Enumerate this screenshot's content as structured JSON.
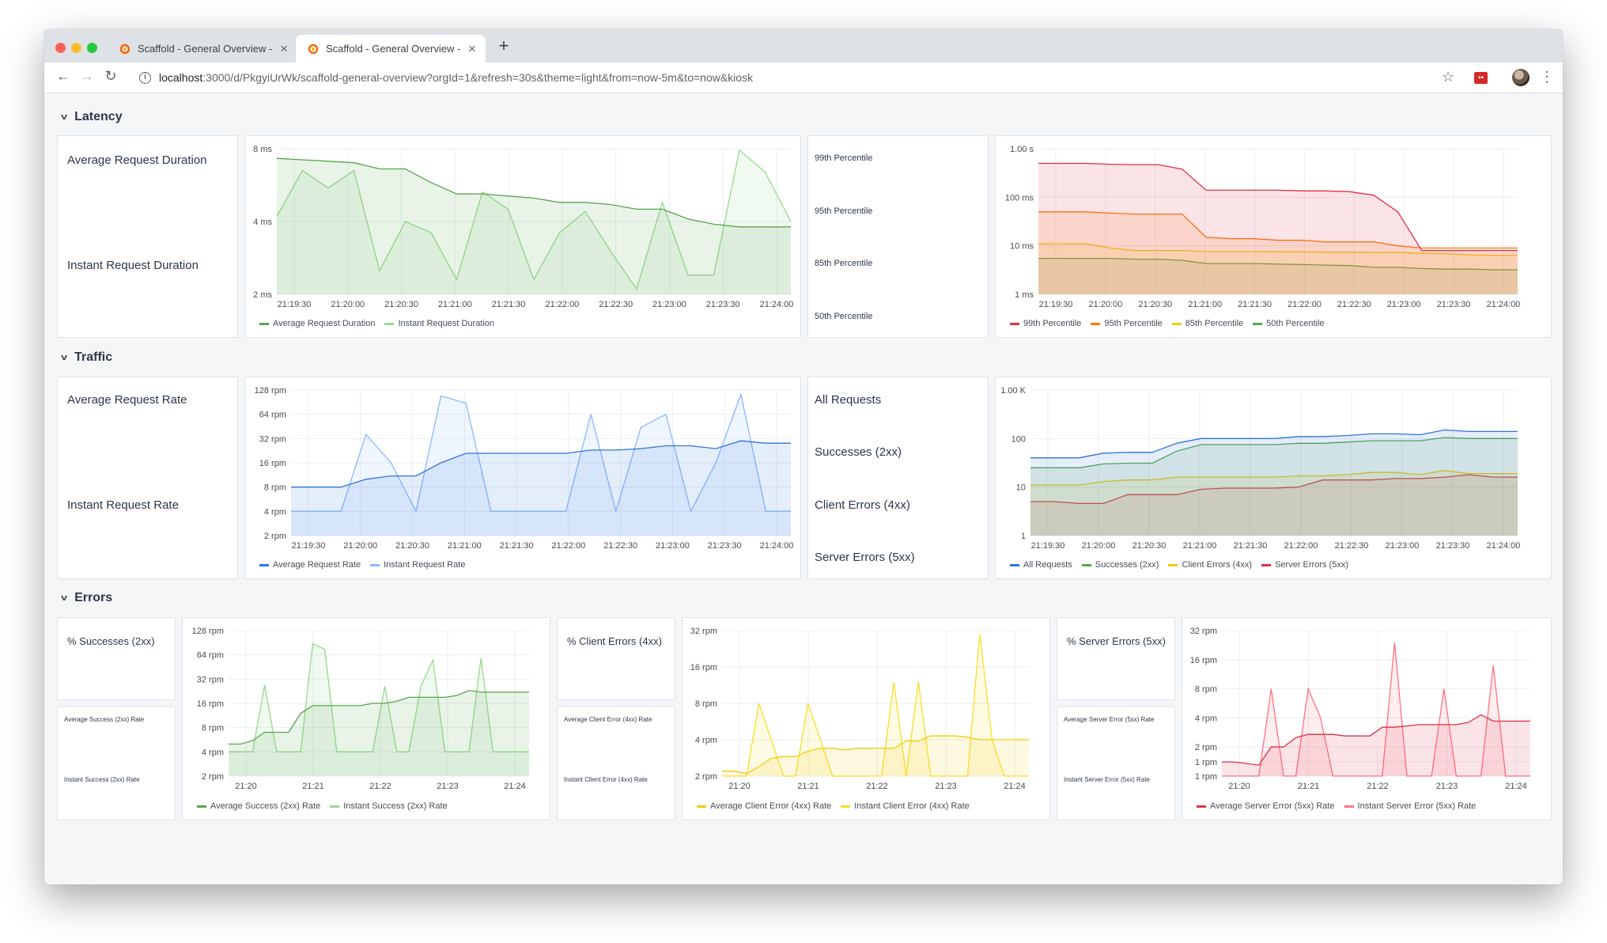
{
  "browser": {
    "tabs": [
      {
        "title": "Scaffold - General Overview - Gr"
      },
      {
        "title": "Scaffold - General Overview - Gr"
      }
    ],
    "url": {
      "host": "localhost",
      "path": ":3000/d/PkgyiUrWk/scaffold-general-overview?orgId=1&refresh=30s&theme=light&from=now-5m&to=now&kiosk"
    },
    "colors": {
      "tab_bg": "#dee1e6",
      "close": "#ff5f57",
      "minimize": "#febc2e",
      "zoom": "#28c840"
    }
  },
  "rows": {
    "latency": "Latency",
    "traffic": "Traffic",
    "errors": "Errors"
  },
  "stats": {
    "latency_left": [
      "Average Request Duration",
      "Instant Request Duration"
    ],
    "latency_right": [
      "99th Percentile",
      "95th Percentile",
      "85th Percentile",
      "50th Percentile"
    ],
    "traffic_left": [
      "Average Request Rate",
      "Instant Request Rate"
    ],
    "traffic_right": [
      "All Requests",
      "Successes (2xx)",
      "Client Errors (4xx)",
      "Server Errors (5xx)"
    ],
    "err_success_title": "% Successes (2xx)",
    "err_success_sub": [
      "Average Success (2xx) Rate",
      "Instant Success (2xx) Rate"
    ],
    "err_client_title": "% Client Errors (4xx)",
    "err_client_sub": [
      "Average Client Error (4xx) Rate",
      "Instant Client Error (4xx) Rate"
    ],
    "err_server_title": "% Server Errors (5xx)",
    "err_server_sub": [
      "Average Server Error (5xx) Rate",
      "Instant Server Error (5xx) Rate"
    ]
  },
  "chart_data": [
    {
      "id": "latency_duration",
      "type": "area",
      "scale": "log",
      "yticks": [
        "2 ms",
        "4 ms",
        "8 ms"
      ],
      "ytick_values": [
        2,
        4,
        8
      ],
      "ylim": [
        2,
        8
      ],
      "xticks": [
        "21:19:30",
        "21:20:00",
        "21:20:30",
        "21:21:00",
        "21:21:30",
        "21:22:00",
        "21:22:30",
        "21:23:00",
        "21:23:30",
        "21:24:00"
      ],
      "x_range": [
        0,
        20
      ],
      "series": [
        {
          "name": "Average Request Duration",
          "color": "#56a64b",
          "values": [
            7.3,
            7.2,
            7.1,
            7.0,
            6.6,
            6.6,
            5.8,
            5.2,
            5.2,
            5.1,
            5.0,
            4.8,
            4.8,
            4.7,
            4.5,
            4.5,
            4.1,
            3.9,
            3.8,
            3.8,
            3.8
          ]
        },
        {
          "name": "Instant Request Duration",
          "color": "#96d98d",
          "values": [
            4.2,
            6.5,
            5.5,
            6.5,
            2.5,
            4.0,
            3.6,
            2.3,
            5.3,
            4.5,
            2.3,
            3.6,
            4.4,
            3.0,
            2.1,
            4.8,
            2.4,
            2.4,
            7.9,
            6.4,
            4.0
          ]
        }
      ]
    },
    {
      "id": "latency_percentiles",
      "type": "area",
      "scale": "log",
      "yticks": [
        "1 ms",
        "10 ms",
        "100 ms",
        "1.00 s"
      ],
      "ytick_values": [
        1,
        10,
        100,
        1000
      ],
      "ylim": [
        1,
        1000
      ],
      "xticks": [
        "21:19:30",
        "21:20:00",
        "21:20:30",
        "21:21:00",
        "21:21:30",
        "21:22:00",
        "21:22:30",
        "21:23:00",
        "21:23:30",
        "21:24:00"
      ],
      "x_range": [
        0,
        20
      ],
      "series": [
        {
          "name": "99th Percentile",
          "color": "#e02f44",
          "values": [
            500,
            500,
            500,
            480,
            470,
            470,
            380,
            140,
            140,
            140,
            140,
            135,
            135,
            130,
            110,
            50,
            8,
            8,
            8,
            8,
            8
          ]
        },
        {
          "name": "95th Percentile",
          "color": "#ff780a",
          "values": [
            50,
            50,
            50,
            47,
            45,
            45,
            45,
            15,
            14,
            14,
            13,
            13,
            12,
            12,
            12,
            10,
            9,
            9,
            9,
            9,
            9
          ]
        },
        {
          "name": "85th Percentile",
          "color": "#f2cc0c",
          "values": [
            11,
            11,
            11,
            9,
            8,
            8,
            8,
            7.6,
            7.6,
            7.6,
            7.5,
            7.5,
            7.4,
            7.4,
            7.3,
            7.3,
            7,
            6.8,
            6.5,
            6.4,
            6.3
          ]
        },
        {
          "name": "50th Percentile",
          "color": "#56a64b",
          "values": [
            5.5,
            5.5,
            5.5,
            5.5,
            5.3,
            5.3,
            5.0,
            4.3,
            4.3,
            4.3,
            4.2,
            4.1,
            4.0,
            3.9,
            3.6,
            3.6,
            3.4,
            3.3,
            3.3,
            3.2,
            3.2
          ]
        }
      ]
    },
    {
      "id": "traffic_rate",
      "type": "area",
      "scale": "log",
      "yticks": [
        "2 rpm",
        "4 rpm",
        "8 rpm",
        "16 rpm",
        "32 rpm",
        "64 rpm",
        "128 rpm"
      ],
      "ytick_values": [
        2,
        4,
        8,
        16,
        32,
        64,
        128
      ],
      "ylim": [
        2,
        128
      ],
      "xticks": [
        "21:19:30",
        "21:20:00",
        "21:20:30",
        "21:21:00",
        "21:21:30",
        "21:22:00",
        "21:22:30",
        "21:23:00",
        "21:23:30",
        "21:24:00"
      ],
      "x_range": [
        0,
        20
      ],
      "series": [
        {
          "name": "Average Request Rate",
          "color": "#3274d9",
          "values": [
            8,
            8,
            8,
            10,
            11,
            11,
            16,
            21,
            21,
            21,
            21,
            21,
            23,
            23,
            24,
            26,
            26,
            24,
            30,
            28,
            28
          ]
        },
        {
          "name": "Instant Request Rate",
          "color": "#8ab8ff",
          "values": [
            4,
            4,
            4,
            36,
            16,
            4,
            108,
            88,
            4,
            4,
            4,
            4,
            64,
            4,
            44,
            64,
            4,
            16,
            113,
            4,
            4
          ]
        }
      ]
    },
    {
      "id": "traffic_breakdown",
      "type": "area",
      "scale": "log",
      "yticks": [
        "1",
        "10",
        "100",
        "1.00 K"
      ],
      "ytick_values": [
        1,
        10,
        100,
        1000
      ],
      "ylim": [
        1,
        1000
      ],
      "xticks": [
        "21:19:30",
        "21:20:00",
        "21:20:30",
        "21:21:00",
        "21:21:30",
        "21:22:00",
        "21:22:30",
        "21:23:00",
        "21:23:30",
        "21:24:00"
      ],
      "x_range": [
        0,
        20
      ],
      "series": [
        {
          "name": "All Requests",
          "color": "#3274d9",
          "values": [
            40,
            40,
            40,
            50,
            52,
            52,
            80,
            100,
            100,
            100,
            100,
            110,
            110,
            115,
            125,
            125,
            120,
            150,
            140,
            140,
            140
          ]
        },
        {
          "name": "Successes (2xx)",
          "color": "#56a64b",
          "values": [
            25,
            25,
            25,
            30,
            31,
            31,
            55,
            75,
            75,
            75,
            75,
            80,
            80,
            85,
            90,
            90,
            90,
            105,
            100,
            100,
            100
          ]
        },
        {
          "name": "Client Errors (4xx)",
          "color": "#f2cc0c",
          "values": [
            11,
            11,
            11,
            13,
            14,
            14,
            16,
            16,
            16,
            16,
            16,
            17,
            17,
            18,
            20,
            20,
            18,
            22,
            19,
            19,
            19
          ]
        },
        {
          "name": "Server Errors (5xx)",
          "color": "#e02f44",
          "values": [
            5,
            5,
            4.6,
            4.6,
            7,
            7,
            7,
            9,
            9.5,
            9.5,
            9.5,
            10,
            14,
            14,
            14,
            15,
            15,
            16,
            18,
            16,
            16
          ]
        }
      ]
    },
    {
      "id": "errors_success",
      "type": "area",
      "scale": "log",
      "yticks": [
        "2 rpm",
        "4 rpm",
        "8 rpm",
        "16 rpm",
        "32 rpm",
        "64 rpm",
        "128 rpm"
      ],
      "ytick_values": [
        2,
        4,
        8,
        16,
        32,
        64,
        128
      ],
      "ylim": [
        2,
        128
      ],
      "xticks": [
        "21:20",
        "21:21",
        "21:22",
        "21:23",
        "21:24"
      ],
      "x_range": [
        0,
        25
      ],
      "series": [
        {
          "name": "Average Success (2xx) Rate",
          "color": "#56a64b",
          "values": [
            5,
            5,
            5.5,
            7,
            7,
            7,
            12,
            15,
            15,
            15,
            15,
            15,
            16,
            16,
            17,
            19,
            19,
            19,
            19,
            20,
            23,
            22,
            22,
            22,
            22,
            22
          ]
        },
        {
          "name": "Instant Success (2xx) Rate",
          "color": "#96d98d",
          "values": [
            4,
            4,
            4,
            27,
            4,
            4,
            4,
            88,
            75,
            4,
            4,
            4,
            4,
            26,
            4,
            4,
            26,
            55,
            4,
            4,
            4,
            58,
            4,
            4,
            4,
            4
          ]
        }
      ]
    },
    {
      "id": "errors_client",
      "type": "area",
      "scale": "log",
      "yticks": [
        "2 rpm",
        "4 rpm",
        "8 rpm",
        "16 rpm",
        "32 rpm"
      ],
      "ytick_values": [
        2,
        4,
        8,
        16,
        32
      ],
      "ylim": [
        2,
        32
      ],
      "xticks": [
        "21:20",
        "21:21",
        "21:22",
        "21:23",
        "21:24"
      ],
      "x_range": [
        0,
        25
      ],
      "series": [
        {
          "name": "Average Client Error (4xx) Rate",
          "color": "#f2cc0c",
          "values": [
            2.2,
            2.2,
            2.1,
            2.4,
            2.8,
            2.9,
            2.9,
            3.2,
            3.4,
            3.4,
            3.3,
            3.4,
            3.4,
            3.4,
            3.4,
            3.9,
            3.9,
            4.3,
            4.3,
            4.3,
            4.2,
            4.0,
            4.0,
            4.0,
            4.0,
            4.0
          ]
        },
        {
          "name": "Instant Client Error (4xx) Rate",
          "color": "#fade2a",
          "values": [
            2,
            2,
            2,
            8,
            4,
            2,
            2,
            8,
            4,
            2,
            2,
            2,
            2,
            2,
            12,
            2,
            12,
            2,
            2,
            2,
            2,
            30,
            4,
            2,
            2,
            2
          ]
        }
      ]
    },
    {
      "id": "errors_server",
      "type": "area",
      "scale": "log",
      "yticks": [
        "1 rpm",
        "1 rpm",
        "2 rpm",
        "4 rpm",
        "8 rpm",
        "16 rpm",
        "32 rpm"
      ],
      "ytick_values": [
        1,
        1.41,
        2,
        4,
        8,
        16,
        32
      ],
      "ylim": [
        1,
        32
      ],
      "xticks": [
        "21:20",
        "21:21",
        "21:22",
        "21:23",
        "21:24"
      ],
      "x_range": [
        0,
        25
      ],
      "series": [
        {
          "name": "Average Server Error (5xx) Rate",
          "color": "#e02f44",
          "values": [
            1.4,
            1.4,
            1.35,
            1.3,
            2,
            2,
            2.5,
            2.7,
            2.7,
            2.7,
            2.6,
            2.6,
            2.6,
            3.2,
            3.2,
            3.3,
            3.4,
            3.4,
            3.4,
            3.4,
            3.6,
            4.3,
            3.7,
            3.7,
            3.7,
            3.7
          ]
        },
        {
          "name": "Instant Server Error (5xx) Rate",
          "color": "#ff7383",
          "values": [
            1,
            1,
            1,
            1,
            8,
            1,
            1,
            8,
            4,
            1,
            1,
            1,
            1,
            1,
            24,
            1,
            1,
            1,
            8,
            1,
            1,
            1,
            14,
            1,
            1,
            1
          ]
        }
      ]
    }
  ]
}
